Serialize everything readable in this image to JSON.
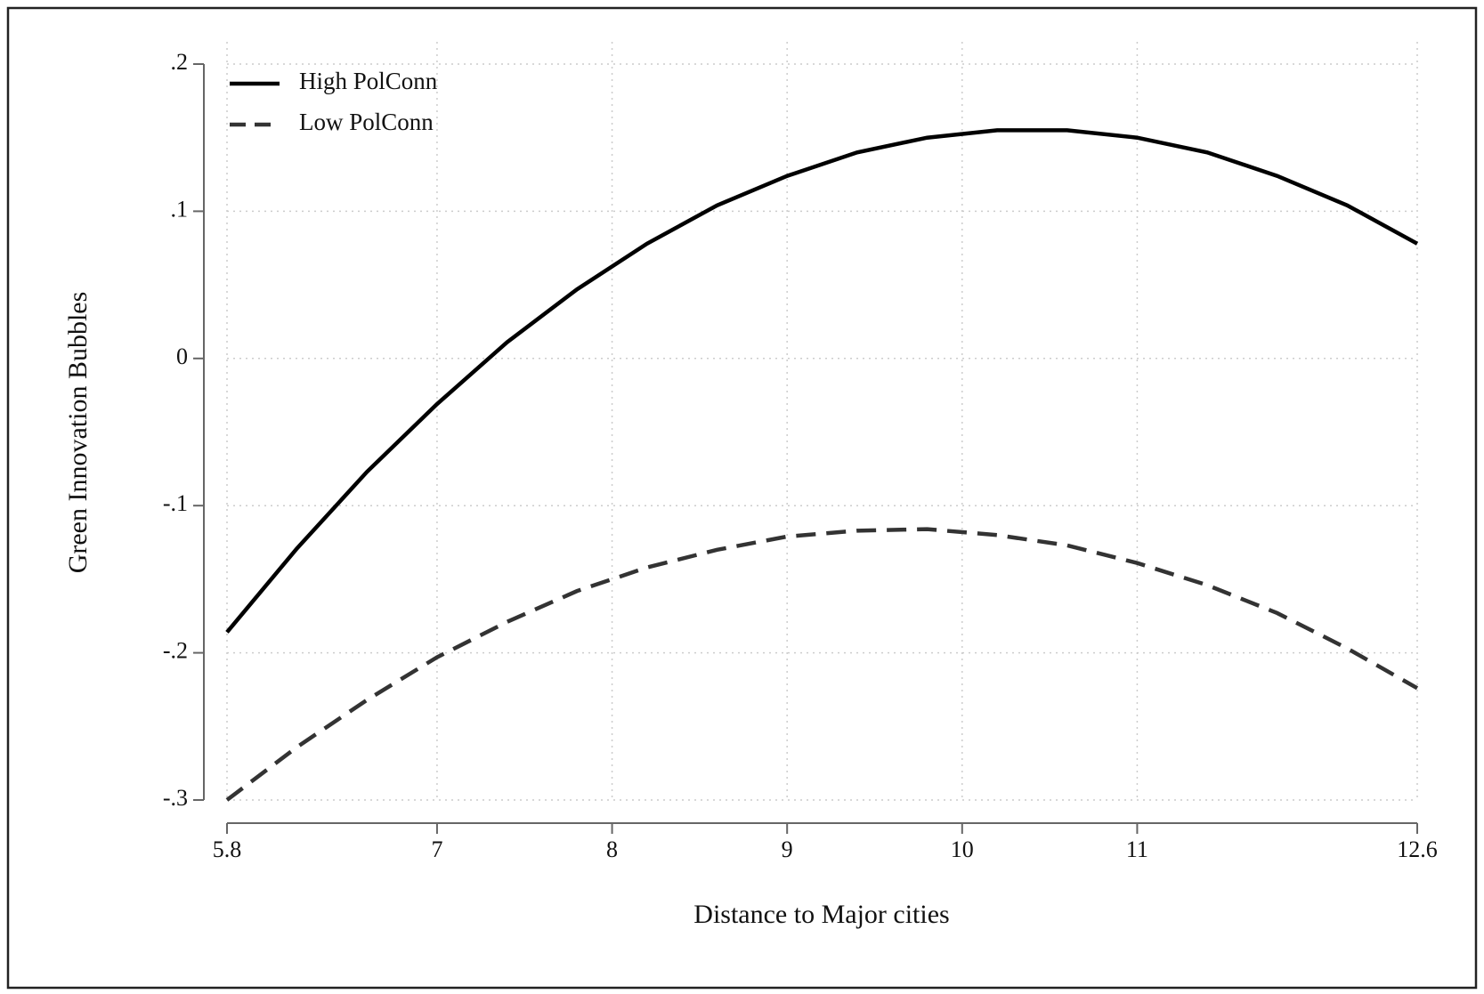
{
  "chart_data": {
    "type": "line",
    "x_label": "Distance to Major cities",
    "y_label": "Green Innovation Bubbles",
    "x": [
      5.8,
      6.2,
      6.6,
      7.0,
      7.4,
      7.8,
      8.2,
      8.6,
      9.0,
      9.4,
      9.8,
      10.2,
      10.6,
      11.0,
      11.4,
      11.8,
      12.2,
      12.6
    ],
    "series": [
      {
        "name": "High PolConn",
        "color": "#000000",
        "line_style": "solid",
        "values": [
          -0.186,
          -0.129,
          -0.077,
          -0.031,
          0.011,
          0.047,
          0.078,
          0.104,
          0.124,
          0.14,
          0.15,
          0.155,
          0.155,
          0.15,
          0.14,
          0.124,
          0.104,
          0.078
        ]
      },
      {
        "name": "Low PolConn",
        "color": "#333333",
        "line_style": "dashed",
        "values": [
          -0.3,
          -0.264,
          -0.232,
          -0.203,
          -0.179,
          -0.158,
          -0.142,
          -0.13,
          -0.121,
          -0.117,
          -0.116,
          -0.12,
          -0.127,
          -0.139,
          -0.154,
          -0.173,
          -0.197,
          -0.224
        ]
      }
    ],
    "xlim": [
      5.8,
      12.6
    ],
    "xticks": [
      5.8,
      7,
      8,
      9,
      10,
      11,
      12.6
    ],
    "ylim": [
      -0.3,
      0.2
    ],
    "yticks": [
      {
        "value": 0.2,
        "label": ".2"
      },
      {
        "value": 0.1,
        "label": ".1"
      },
      {
        "value": 0,
        "label": "0"
      },
      {
        "value": -0.1,
        "label": "-.1"
      },
      {
        "value": -0.2,
        "label": "-.2"
      },
      {
        "value": -0.3,
        "label": "-.3"
      }
    ],
    "grid": true,
    "legend_position": "top-left"
  }
}
